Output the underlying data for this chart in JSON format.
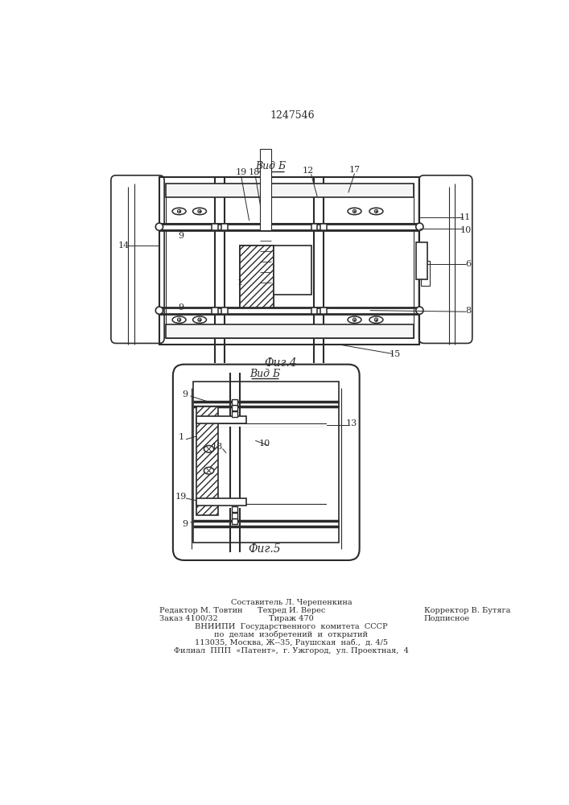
{
  "title_number": "1247546",
  "fig4_label": "Фиг.4",
  "fig5_label": "Фиг.5",
  "vid_b_label": "Вид Б",
  "bg_color": "#ffffff",
  "line_color": "#2a2a2a",
  "text_color": "#2a2a2a",
  "footer_col1_line1": "Редактор М. Товтин",
  "footer_col1_line2": "Заказ 4100/32",
  "footer_col2_line0": "Составитель Л. Черепенкина",
  "footer_col2_line1": "Техред И. Верес",
  "footer_col2_line2": "Тираж 470",
  "footer_col3_line1": "Корректор В. Бутяга",
  "footer_col3_line2": "Подписное",
  "footer_vniipи": "ВНИИПИ  Государственного  комитета  СССР",
  "footer_po": "по  делам  изобретений  и  открытий",
  "footer_addr1": "113035, Москва, Ж--35, Раушская  наб.,  д. 4/5",
  "footer_addr2": "Филиал  ППП  «Патент»,  г. Ужгород,  ул. Проектная,  4"
}
